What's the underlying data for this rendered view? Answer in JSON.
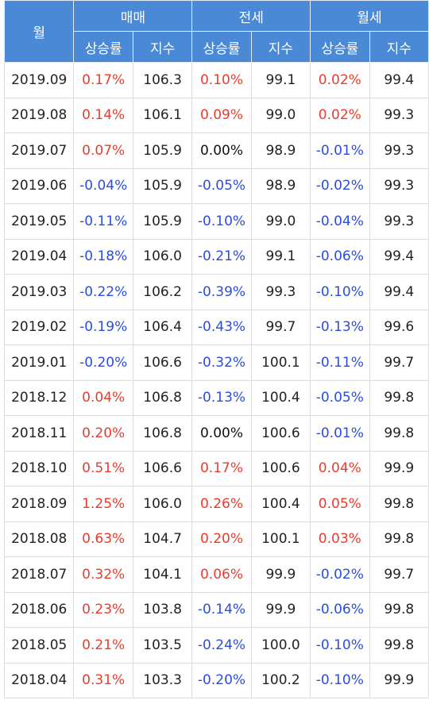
{
  "header": {
    "month_label": "월",
    "groups": [
      "매매",
      "전세",
      "월세"
    ],
    "rate_label": "상승률",
    "index_label": "지수"
  },
  "rows": [
    {
      "month": "2019.09",
      "sale_rate": "0.17%",
      "sale_idx": "106.3",
      "jeonse_rate": "0.10%",
      "jeonse_idx": "99.1",
      "wolse_rate": "0.02%",
      "wolse_idx": "99.4"
    },
    {
      "month": "2019.08",
      "sale_rate": "0.14%",
      "sale_idx": "106.1",
      "jeonse_rate": "0.09%",
      "jeonse_idx": "99.0",
      "wolse_rate": "0.02%",
      "wolse_idx": "99.3"
    },
    {
      "month": "2019.07",
      "sale_rate": "0.07%",
      "sale_idx": "105.9",
      "jeonse_rate": "0.00%",
      "jeonse_idx": "98.9",
      "wolse_rate": "-0.01%",
      "wolse_idx": "99.3"
    },
    {
      "month": "2019.06",
      "sale_rate": "-0.04%",
      "sale_idx": "105.9",
      "jeonse_rate": "-0.05%",
      "jeonse_idx": "98.9",
      "wolse_rate": "-0.02%",
      "wolse_idx": "99.3"
    },
    {
      "month": "2019.05",
      "sale_rate": "-0.11%",
      "sale_idx": "105.9",
      "jeonse_rate": "-0.10%",
      "jeonse_idx": "99.0",
      "wolse_rate": "-0.04%",
      "wolse_idx": "99.3"
    },
    {
      "month": "2019.04",
      "sale_rate": "-0.18%",
      "sale_idx": "106.0",
      "jeonse_rate": "-0.21%",
      "jeonse_idx": "99.1",
      "wolse_rate": "-0.06%",
      "wolse_idx": "99.4"
    },
    {
      "month": "2019.03",
      "sale_rate": "-0.22%",
      "sale_idx": "106.2",
      "jeonse_rate": "-0.39%",
      "jeonse_idx": "99.3",
      "wolse_rate": "-0.10%",
      "wolse_idx": "99.4"
    },
    {
      "month": "2019.02",
      "sale_rate": "-0.19%",
      "sale_idx": "106.4",
      "jeonse_rate": "-0.43%",
      "jeonse_idx": "99.7",
      "wolse_rate": "-0.13%",
      "wolse_idx": "99.6"
    },
    {
      "month": "2019.01",
      "sale_rate": "-0.20%",
      "sale_idx": "106.6",
      "jeonse_rate": "-0.32%",
      "jeonse_idx": "100.1",
      "wolse_rate": "-0.11%",
      "wolse_idx": "99.7"
    },
    {
      "month": "2018.12",
      "sale_rate": "0.04%",
      "sale_idx": "106.8",
      "jeonse_rate": "-0.13%",
      "jeonse_idx": "100.4",
      "wolse_rate": "-0.05%",
      "wolse_idx": "99.8"
    },
    {
      "month": "2018.11",
      "sale_rate": "0.20%",
      "sale_idx": "106.8",
      "jeonse_rate": "0.00%",
      "jeonse_idx": "100.6",
      "wolse_rate": "-0.01%",
      "wolse_idx": "99.8"
    },
    {
      "month": "2018.10",
      "sale_rate": "0.51%",
      "sale_idx": "106.6",
      "jeonse_rate": "0.17%",
      "jeonse_idx": "100.6",
      "wolse_rate": "0.04%",
      "wolse_idx": "99.9"
    },
    {
      "month": "2018.09",
      "sale_rate": "1.25%",
      "sale_idx": "106.0",
      "jeonse_rate": "0.26%",
      "jeonse_idx": "100.4",
      "wolse_rate": "0.05%",
      "wolse_idx": "99.8"
    },
    {
      "month": "2018.08",
      "sale_rate": "0.63%",
      "sale_idx": "104.7",
      "jeonse_rate": "0.20%",
      "jeonse_idx": "100.1",
      "wolse_rate": "0.03%",
      "wolse_idx": "99.8"
    },
    {
      "month": "2018.07",
      "sale_rate": "0.32%",
      "sale_idx": "104.1",
      "jeonse_rate": "0.06%",
      "jeonse_idx": "99.9",
      "wolse_rate": "-0.02%",
      "wolse_idx": "99.7"
    },
    {
      "month": "2018.06",
      "sale_rate": "0.23%",
      "sale_idx": "103.8",
      "jeonse_rate": "-0.14%",
      "jeonse_idx": "99.9",
      "wolse_rate": "-0.06%",
      "wolse_idx": "99.8"
    },
    {
      "month": "2018.05",
      "sale_rate": "0.21%",
      "sale_idx": "103.5",
      "jeonse_rate": "-0.24%",
      "jeonse_idx": "100.0",
      "wolse_rate": "-0.10%",
      "wolse_idx": "99.8"
    },
    {
      "month": "2018.04",
      "sale_rate": "0.31%",
      "sale_idx": "103.3",
      "jeonse_rate": "-0.20%",
      "jeonse_idx": "100.2",
      "wolse_rate": "-0.10%",
      "wolse_idx": "99.9"
    }
  ],
  "colors": {
    "header_bg": "#4a89d6",
    "up": "#ec3b2c",
    "down": "#2b4ce0",
    "flat": "#111111"
  }
}
